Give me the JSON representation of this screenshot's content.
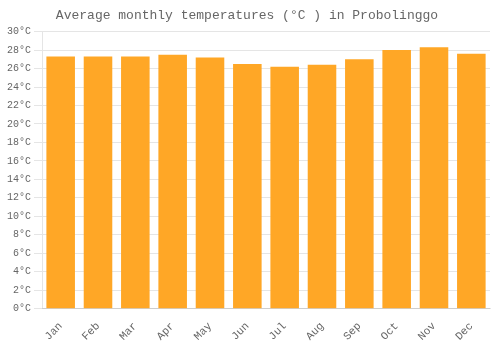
{
  "chart_data": {
    "type": "bar",
    "title": "Average monthly temperatures (°C ) in Probolinggo",
    "categories": [
      "Jan",
      "Feb",
      "Mar",
      "Apr",
      "May",
      "Jun",
      "Jul",
      "Aug",
      "Sep",
      "Oct",
      "Nov",
      "Dec"
    ],
    "values": [
      27.3,
      27.3,
      27.3,
      27.5,
      27.2,
      26.5,
      26.2,
      26.4,
      27.0,
      28.0,
      28.3,
      27.6
    ],
    "color": "#FFA726",
    "ylim": [
      0,
      30
    ],
    "yticks": [
      {
        "value": 0,
        "label": "0°C"
      },
      {
        "value": 2,
        "label": "2°C"
      },
      {
        "value": 4,
        "label": "4°C"
      },
      {
        "value": 6,
        "label": "6°C"
      },
      {
        "value": 8,
        "label": "8°C"
      },
      {
        "value": 10,
        "label": "10°C"
      },
      {
        "value": 12,
        "label": "12°C"
      },
      {
        "value": 14,
        "label": "14°C"
      },
      {
        "value": 16,
        "label": "16°C"
      },
      {
        "value": 18,
        "label": "18°C"
      },
      {
        "value": 20,
        "label": "20°C"
      },
      {
        "value": 22,
        "label": "22°C"
      },
      {
        "value": 24,
        "label": "24°C"
      },
      {
        "value": 26,
        "label": "26°C"
      },
      {
        "value": 28,
        "label": "28°C"
      },
      {
        "value": 30,
        "label": "30°C"
      }
    ],
    "grid": true
  }
}
